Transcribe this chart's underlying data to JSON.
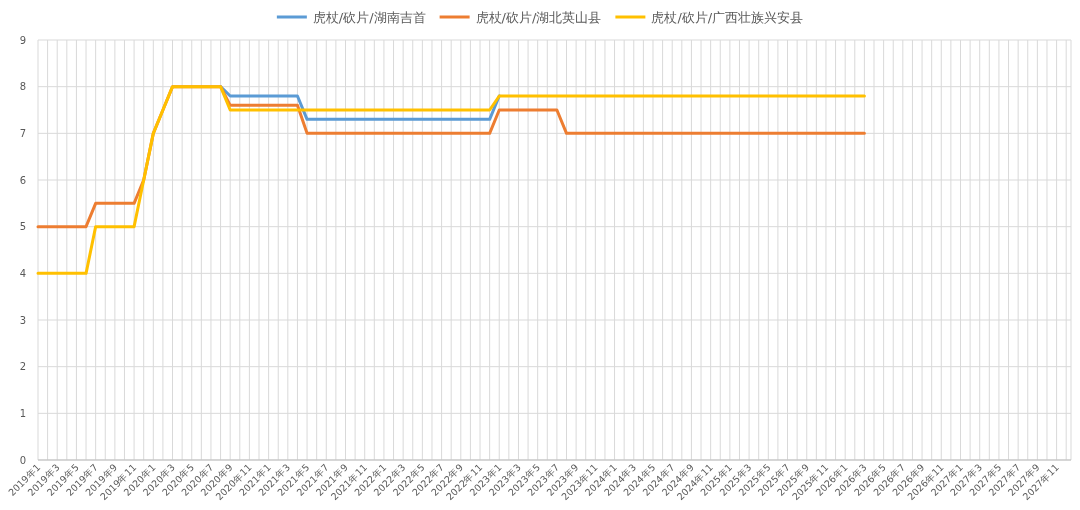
{
  "chart_data": {
    "type": "line",
    "legend": "top",
    "grid": true,
    "line_style": "solid",
    "marker": "none",
    "categories": [
      "2019年1",
      null,
      "2019年3",
      null,
      "2019年5",
      null,
      "2019年7",
      null,
      "2019年9",
      null,
      "2019年11",
      null,
      "2020年1",
      null,
      "2020年3",
      null,
      "2020年5",
      null,
      "2020年7",
      null,
      "2020年9",
      null,
      "2020年11",
      null,
      "2021年1",
      null,
      "2021年3",
      null,
      "2021年5",
      null,
      "2021年7",
      null,
      "2021年9",
      null,
      "2021年11",
      null,
      "2022年1",
      null,
      "2022年3",
      null,
      "2022年5",
      null,
      "2022年7",
      null,
      "2022年9",
      null,
      "2022年11",
      null,
      "2023年1",
      null,
      "2023年3",
      null,
      "2023年5",
      null,
      "2023年7",
      null,
      "2023年9",
      null,
      "2023年11",
      null,
      "2024年1",
      null,
      "2024年3",
      null,
      "2024年5",
      null,
      "2024年7",
      null,
      "2024年9",
      null,
      "2024年11",
      null,
      "2025年1",
      null,
      "2025年3",
      null,
      "2025年5",
      null,
      "2025年7",
      null,
      "2025年9",
      null,
      "2025年11",
      null,
      "2026年1",
      null,
      "2026年3",
      null,
      "2026年5",
      null,
      "2026年7",
      null,
      "2026年9",
      null,
      "2026年11",
      null,
      "2027年1",
      null,
      "2027年3",
      null,
      "2027年5",
      null,
      "2027年7",
      null,
      "2027年9",
      null,
      "2027年11",
      null
    ],
    "ylim": [
      0,
      9
    ],
    "yticks": [
      0,
      1,
      2,
      3,
      4,
      5,
      6,
      7,
      8,
      9
    ],
    "series": [
      {
        "name": "虎杖/砍片/湖南吉首",
        "color": "#5b9bd5",
        "values": [
          null,
          null,
          null,
          null,
          null,
          null,
          null,
          null,
          null,
          null,
          null,
          null,
          null,
          null,
          null,
          null,
          null,
          null,
          null,
          8,
          7.8,
          7.8,
          7.8,
          7.8,
          7.8,
          7.8,
          7.8,
          7.8,
          7.3,
          7.3,
          7.3,
          7.3,
          7.3,
          7.3,
          7.3,
          7.3,
          7.3,
          7.3,
          7.3,
          7.3,
          7.3,
          7.3,
          7.3,
          7.3,
          7.3,
          7.3,
          7.3,
          7.3,
          7.8,
          null,
          null,
          null,
          null,
          null,
          null,
          null,
          null,
          null,
          null,
          null,
          null,
          null,
          null,
          null,
          null,
          null,
          null,
          null,
          null,
          null,
          null,
          null,
          null,
          null,
          null,
          null,
          null,
          null,
          null,
          null,
          null,
          null,
          null,
          null,
          null,
          null,
          null,
          null,
          null,
          null,
          null,
          null,
          null,
          null,
          null,
          null,
          null,
          null,
          null,
          null,
          null,
          null,
          null,
          null,
          null,
          null,
          null,
          null
        ]
      },
      {
        "name": "虎杖/砍片/湖北英山县",
        "color": "#ed7d31",
        "values": [
          5,
          5,
          5,
          5,
          5,
          5,
          5.5,
          5.5,
          5.5,
          5.5,
          5.5,
          6,
          7,
          7.5,
          8,
          8,
          8,
          8,
          8,
          8,
          7.6,
          7.6,
          7.6,
          7.6,
          7.6,
          7.6,
          7.6,
          7.6,
          7,
          7,
          7,
          7,
          7,
          7,
          7,
          7,
          7,
          7,
          7,
          7,
          7,
          7,
          7,
          7,
          7,
          7,
          7,
          7,
          7.5,
          7.5,
          7.5,
          7.5,
          7.5,
          7.5,
          7.5,
          7,
          7,
          7,
          7,
          7,
          7,
          7,
          7,
          7,
          7,
          7,
          7,
          7,
          7,
          7,
          7,
          7,
          7,
          7,
          7,
          7,
          7,
          7,
          7,
          7,
          7,
          7,
          7,
          7,
          7,
          7,
          7,
          null,
          null,
          null,
          null,
          null,
          null,
          null,
          null,
          null,
          null,
          null,
          null,
          null,
          null,
          null,
          null,
          null,
          null,
          null,
          null,
          null
        ]
      },
      {
        "name": "虎杖/砍片/广西壮族兴安县",
        "color": "#ffc000",
        "values": [
          4,
          4,
          4,
          4,
          4,
          4,
          5,
          5,
          5,
          5,
          5,
          6,
          7,
          7.5,
          8,
          8,
          8,
          8,
          8,
          8,
          7.5,
          7.5,
          7.5,
          7.5,
          7.5,
          7.5,
          7.5,
          7.5,
          7.5,
          7.5,
          7.5,
          7.5,
          7.5,
          7.5,
          7.5,
          7.5,
          7.5,
          7.5,
          7.5,
          7.5,
          7.5,
          7.5,
          7.5,
          7.5,
          7.5,
          7.5,
          7.5,
          7.5,
          7.8,
          7.8,
          7.8,
          7.8,
          7.8,
          7.8,
          7.8,
          7.8,
          7.8,
          7.8,
          7.8,
          7.8,
          7.8,
          7.8,
          7.8,
          7.8,
          7.8,
          7.8,
          7.8,
          7.8,
          7.8,
          7.8,
          7.8,
          7.8,
          7.8,
          7.8,
          7.8,
          7.8,
          7.8,
          7.8,
          7.8,
          7.8,
          7.8,
          7.8,
          7.8,
          7.8,
          7.8,
          7.8,
          7.8,
          null,
          null,
          null,
          null,
          null,
          null,
          null,
          null,
          null,
          null,
          null,
          null,
          null,
          null,
          null,
          null,
          null,
          null,
          null,
          null,
          null
        ]
      }
    ]
  }
}
